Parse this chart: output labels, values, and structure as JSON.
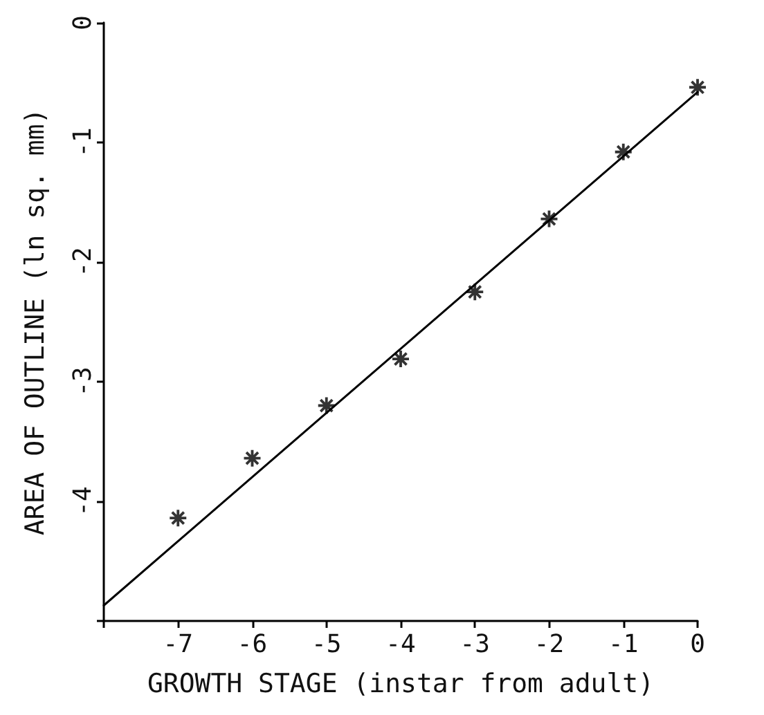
{
  "chart_data": {
    "type": "scatter",
    "xlabel": "GROWTH STAGE (instar from adult)",
    "ylabel": "AREA OF OUTLINE (ln sq. mm)",
    "x": [
      -7,
      -6,
      -5,
      -4,
      -3,
      -2,
      -1,
      0
    ],
    "series": [
      {
        "color": "#000000",
        "marker": "star",
        "values": [
          -4.14,
          -3.64,
          -3.2,
          -2.81,
          -2.25,
          -1.64,
          -1.08,
          -0.54
        ]
      },
      {
        "type": "line",
        "color": "#000000",
        "marker": "none",
        "line_style": "solid",
        "x": [
          -8,
          0
        ],
        "values": [
          -4.87,
          -0.58
        ]
      }
    ],
    "xlim": [
      -8,
      0
    ],
    "xticks": [
      {
        "value": -8,
        "label": null
      },
      -7,
      -6,
      -5,
      -4,
      -3,
      -2,
      -1,
      0
    ],
    "ylim": [
      -5,
      0
    ],
    "yticks": [
      {
        "value": -5,
        "label": null
      },
      -4,
      -3,
      -2,
      -1,
      0
    ],
    "grid": false
  }
}
